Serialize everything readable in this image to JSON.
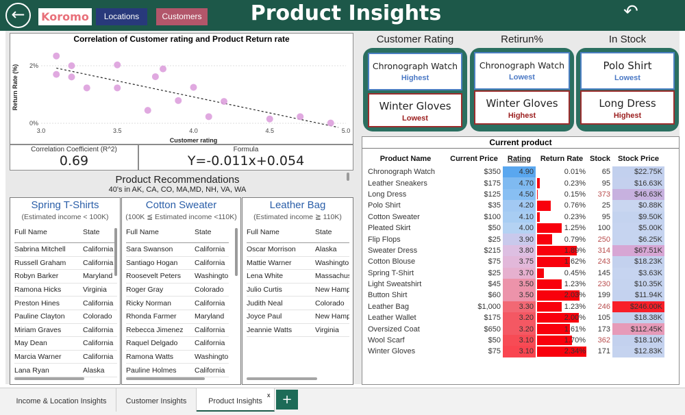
{
  "header": {
    "logo": "Koromo",
    "nav_locations": "Locations",
    "nav_customers": "Customers",
    "title": "Product Insights",
    "back_icon": "back-arrow-icon",
    "reset_icon": "undo-icon"
  },
  "scatter": {
    "title": "Correlation of Customer rating and Product Return rate"
  },
  "chart_data": {
    "type": "scatter",
    "title": "Correlation of Customer rating and Product Return rate",
    "xlabel": "Customer rating",
    "ylabel": "Return Rate (%)",
    "xlim": [
      3.0,
      5.0
    ],
    "ylim": [
      0,
      2.5
    ],
    "xticks": [
      "3.0",
      "3.5",
      "4.0",
      "4.5",
      "5.0"
    ],
    "yticks": [
      "0%",
      "2%"
    ],
    "x": [
      3.1,
      3.1,
      3.2,
      3.2,
      3.3,
      3.5,
      3.5,
      3.7,
      3.75,
      3.8,
      3.9,
      4.0,
      4.1,
      4.2,
      4.5,
      4.7,
      4.9
    ],
    "y": [
      2.34,
      1.7,
      2.0,
      1.61,
      1.23,
      2.03,
      1.23,
      0.45,
      1.62,
      1.89,
      0.79,
      1.25,
      0.23,
      0.76,
      0.15,
      0.23,
      0.01
    ],
    "trendline": {
      "slope": -0.011,
      "intercept": 0.054
    }
  },
  "stats": {
    "corr_label": "Correlation Coefficient (R^2)",
    "corr_value": "0.69",
    "formula_label": "Formula",
    "formula_value": "Y=-0.011x+0.054"
  },
  "cards": {
    "rating": {
      "header": "Customer Rating",
      "top_name": "Chronograph Watch",
      "top_level": "Highest",
      "bottom_name": "Winter Gloves",
      "bottom_level": "Lowest"
    },
    "return": {
      "header": "Retirun%",
      "top_name": "Chronograph Watch",
      "top_level": "Lowest",
      "bottom_name": "Winter Gloves",
      "bottom_level": "Highest"
    },
    "stock": {
      "header": "In Stock",
      "top_name": "Polo Shirt",
      "top_level": "Lowest",
      "bottom_name": "Long Dress",
      "bottom_level": "Highest"
    }
  },
  "rec": {
    "title": "Product Recommendations",
    "sub": "40's in AK, CA, CO, MA,MD, NH, VA, WA"
  },
  "lists": [
    {
      "title": "Spring T-Shirts",
      "income": "(Estimated income < 100K)",
      "col1": "Full Name",
      "col2": "State",
      "rows": [
        [
          "Sabrina Mitchell",
          "California"
        ],
        [
          "Russell Graham",
          "California"
        ],
        [
          "Robyn Barker",
          "Maryland"
        ],
        [
          "Ramona Hicks",
          "Virginia"
        ],
        [
          "Preston Hines",
          "California"
        ],
        [
          "Pauline Clayton",
          "Colorado"
        ],
        [
          "Miriam Graves",
          "California"
        ],
        [
          "May Dean",
          "California"
        ],
        [
          "Marcia Warner",
          "California"
        ],
        [
          "Lana Ryan",
          "Alaska"
        ]
      ]
    },
    {
      "title": "Cotton Sweater",
      "income": "(100K ≦ Estimated income <110K)",
      "col1": "Full Name",
      "col2": "State",
      "rows": [
        [
          "Sara Swanson",
          "California"
        ],
        [
          "Santiago Hogan",
          "California"
        ],
        [
          "Roosevelt Peters",
          "Washington"
        ],
        [
          "Roger Gray",
          "Colorado"
        ],
        [
          "Ricky Norman",
          "California"
        ],
        [
          "Rhonda Farmer",
          "Maryland"
        ],
        [
          "Rebecca Jimenez",
          "California"
        ],
        [
          "Raquel Delgado",
          "California"
        ],
        [
          "Ramona Watts",
          "Washington"
        ],
        [
          "Pauline Holmes",
          "California"
        ]
      ]
    },
    {
      "title": "Leather Bag",
      "income": "(Estimated income ≧ 110K)",
      "col1": "Full Name",
      "col2": "State",
      "rows": [
        [
          "Oscar Morrison",
          "Alaska"
        ],
        [
          "Mattie Warner",
          "Washington"
        ],
        [
          "Lena White",
          "Massachusetts"
        ],
        [
          "Julio Curtis",
          "New Hampshire"
        ],
        [
          "Judith Neal",
          "Colorado"
        ],
        [
          "Joyce Paul",
          "New Hampshire"
        ],
        [
          "Jeannie Watts",
          "Virginia"
        ]
      ]
    }
  ],
  "products": {
    "title": "Current product",
    "headers": [
      "Product Name",
      "Current Price",
      "Rating",
      "Return Rate",
      "Stock",
      "Stock Price"
    ],
    "rows": [
      [
        "Chronograph Watch",
        "$350",
        "4.90",
        "0.01%",
        "65",
        "$22.75K"
      ],
      [
        "Leather Sneakers",
        "$175",
        "4.70",
        "0.23%",
        "95",
        "$16.63K"
      ],
      [
        "Long Dress",
        "$125",
        "4.50",
        "0.15%",
        "373",
        "$46.63K"
      ],
      [
        "Polo Shirt",
        "$35",
        "4.20",
        "0.76%",
        "25",
        "$0.88K"
      ],
      [
        "Cotton Sweater",
        "$100",
        "4.10",
        "0.23%",
        "95",
        "$9.50K"
      ],
      [
        "Pleated Skirt",
        "$50",
        "4.00",
        "1.25%",
        "100",
        "$5.00K"
      ],
      [
        "Flip Flops",
        "$25",
        "3.90",
        "0.79%",
        "250",
        "$6.25K"
      ],
      [
        "Sweater Dress",
        "$215",
        "3.80",
        "1.89%",
        "314",
        "$67.51K"
      ],
      [
        "Cotton Blouse",
        "$75",
        "3.75",
        "1.62%",
        "243",
        "$18.23K"
      ],
      [
        "Spring T-Shirt",
        "$25",
        "3.70",
        "0.45%",
        "145",
        "$3.63K"
      ],
      [
        "Light Sweatshirt",
        "$45",
        "3.50",
        "1.23%",
        "230",
        "$10.35K"
      ],
      [
        "Button Shirt",
        "$60",
        "3.50",
        "2.03%",
        "199",
        "$11.94K"
      ],
      [
        "Leather Bag",
        "$1,000",
        "3.30",
        "1.23%",
        "246",
        "$246.00K"
      ],
      [
        "Leather Wallet",
        "$175",
        "3.20",
        "2.00%",
        "105",
        "$18.38K"
      ],
      [
        "Oversized Coat",
        "$650",
        "3.20",
        "1.61%",
        "173",
        "$112.45K"
      ],
      [
        "Wool Scarf",
        "$50",
        "3.10",
        "1.70%",
        "362",
        "$18.10K"
      ],
      [
        "Winter Gloves",
        "$75",
        "3.10",
        "2.34%",
        "171",
        "$12.83K"
      ]
    ],
    "rating_colors": [
      "#5aa7ef",
      "#7fbaf1",
      "#88bff3",
      "#a2c9f3",
      "#a8cdf3",
      "#b4d2f3",
      "#c9c9ec",
      "#ddbfe2",
      "#e2b8da",
      "#e6b0cf",
      "#ec93aa",
      "#ec93aa",
      "#f26874",
      "#f45863",
      "#f45863",
      "#f74b55",
      "#f94550"
    ],
    "stock_price_colors": [
      "#c2d0ee",
      "#c4d0ee",
      "#c7b1df",
      "#c9d6f0",
      "#c4d3ef",
      "#c6d4f0",
      "#c6d4f0",
      "#d7a6d4",
      "#c3d1ee",
      "#c6d4f0",
      "#c5d3ef",
      "#c4d2ef",
      "#f81e28",
      "#c3d1ee",
      "#e69ab8",
      "#c3d1ee",
      "#c5d3ef"
    ],
    "max_return": 2.34
  },
  "tabs": [
    "Income & Location Insights",
    "Customer Insights",
    "Product Insights"
  ],
  "tab_close": "x",
  "add_tab": "+"
}
